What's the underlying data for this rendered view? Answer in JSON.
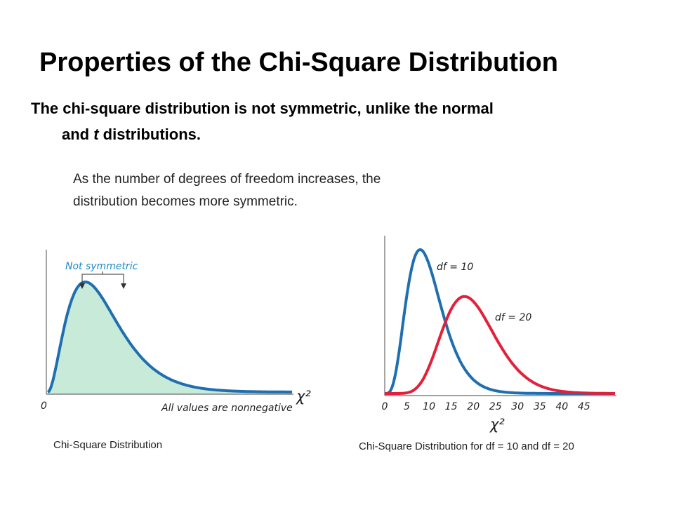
{
  "slide": {
    "title": "Properties of the Chi-Square Distribution",
    "bullet_line1": "The chi-square distribution is not symmetric, unlike the normal",
    "bullet_line2_pre": "and ",
    "bullet_line2_italic": "t",
    "bullet_line2_post": " distributions.",
    "note_line1": "As the number of degrees of freedom increases, the",
    "note_line2": "distribution becomes more symmetric."
  },
  "chart_data": [
    {
      "type": "area",
      "caption": "Chi-Square Distribution",
      "xlabel": "χ²",
      "origin_label": "0",
      "annotation_top": "Not symmetric",
      "annotation_bottom": "All values are nonnegative",
      "series_color": "#1f6fb0",
      "fill_color": "#c8ead8"
    },
    {
      "type": "line",
      "caption": "Chi-Square Distribution for  df = 10 and df = 20",
      "xlabel": "χ²",
      "xticks": [
        "0",
        "5",
        "10",
        "15",
        "20",
        "25",
        "30",
        "35",
        "40",
        "45"
      ],
      "xlim": [
        0,
        52
      ],
      "series": [
        {
          "name": "df = 10",
          "df": 10,
          "color": "#1f6fb0"
        },
        {
          "name": "df = 20",
          "df": 20,
          "color": "#e3203a"
        }
      ]
    }
  ]
}
